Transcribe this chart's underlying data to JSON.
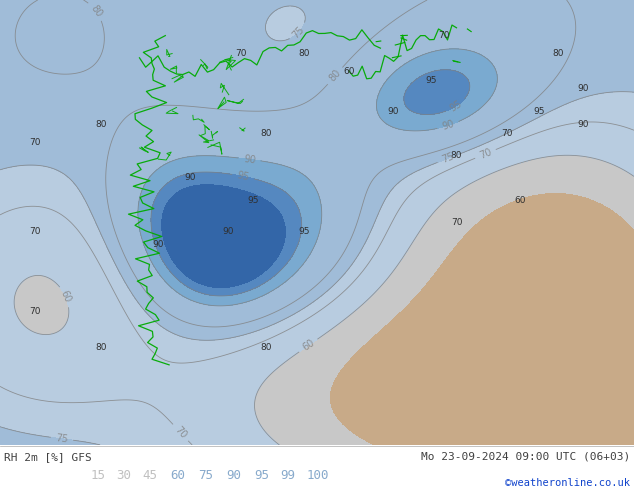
{
  "title_left": "RH 2m [%] GFS",
  "title_right": "Mo 23-09-2024 09:00 UTC (06+03)",
  "credit": "©weatheronline.co.uk",
  "levels": [
    15,
    30,
    45,
    60,
    75,
    90,
    95,
    99,
    100
  ],
  "fill_colors": [
    "#c8aa88",
    "#c8aa88",
    "#c8c8c8",
    "#b8cce0",
    "#a0bcd8",
    "#7aaad0",
    "#5588c0",
    "#3366a8"
  ],
  "contour_color": "#808080",
  "coast_color": "#00aa00",
  "bg_color": "#b8d4e8",
  "fig_width": 6.34,
  "fig_height": 4.9,
  "dpi": 100,
  "bar_bg": "#ffffff",
  "text_color_dark": "#404040",
  "credit_color": "#1144cc",
  "legend_colors_text": [
    "#c0c0c0",
    "#c0c0c0",
    "#c0c0c0",
    "#88aacc",
    "#88aacc",
    "#88aacc",
    "#88aacc",
    "#88aacc",
    "#88aacc"
  ],
  "legend_labels": [
    "15",
    "30",
    "45",
    "60",
    "75",
    "90",
    "95",
    "99",
    "100"
  ]
}
